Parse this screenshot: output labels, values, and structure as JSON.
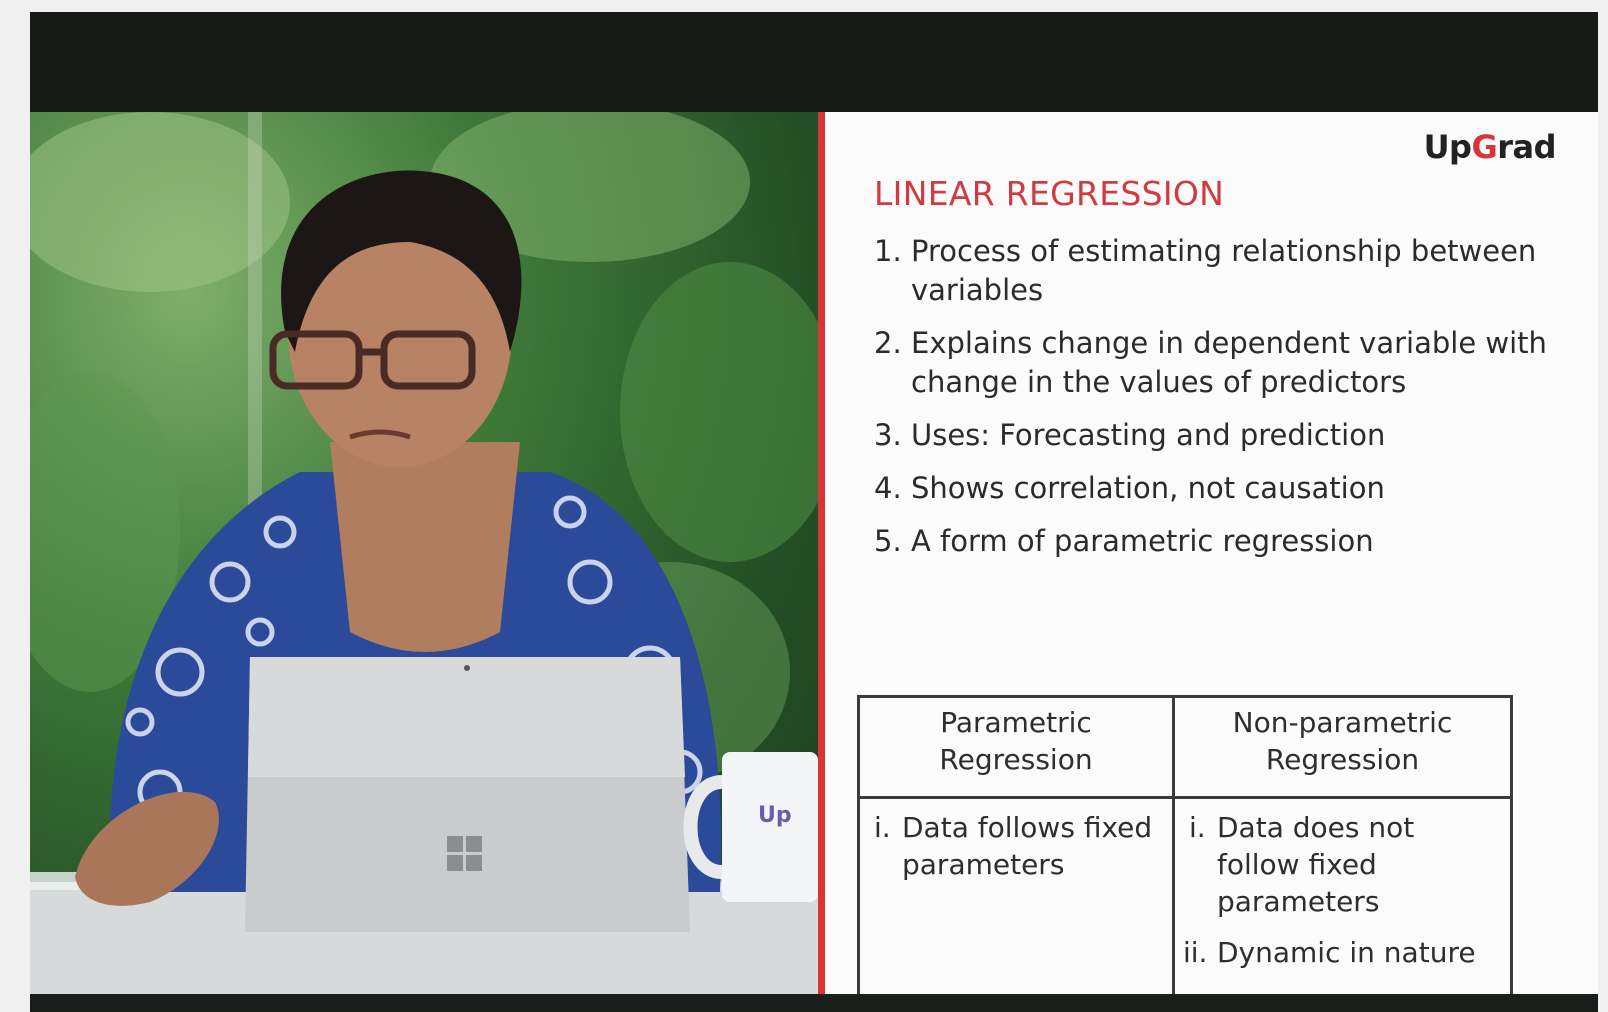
{
  "slide": {
    "brand_prefix": "Up",
    "brand_accent": "G",
    "brand_suffix": "rad",
    "title": "LINEAR REGRESSION",
    "points": [
      {
        "num": "1.",
        "text": "Process of estimating relationship between variables"
      },
      {
        "num": "2.",
        "text": "Explains change in dependent variable with change in the values of predictors"
      },
      {
        "num": "3.",
        "text": "Uses: Forecasting and prediction"
      },
      {
        "num": "4.",
        "text": "Shows correlation, not causation"
      },
      {
        "num": "5.",
        "text": "A form of parametric regression"
      }
    ],
    "table": {
      "headers": [
        "Parametric Regression",
        "Non-parametric Regression"
      ],
      "left_items": [
        {
          "num": "i.",
          "text": "Data follows fixed parameters"
        }
      ],
      "right_items": [
        {
          "num": "i.",
          "text": "Data does not follow fixed parameters"
        },
        {
          "num": "ii.",
          "text": "Dynamic in nature"
        }
      ]
    }
  },
  "video": {
    "mug_text": "Up"
  },
  "colors": {
    "accent": "#d8353b",
    "title": "#d13a40",
    "player_bg": "#161b18"
  }
}
